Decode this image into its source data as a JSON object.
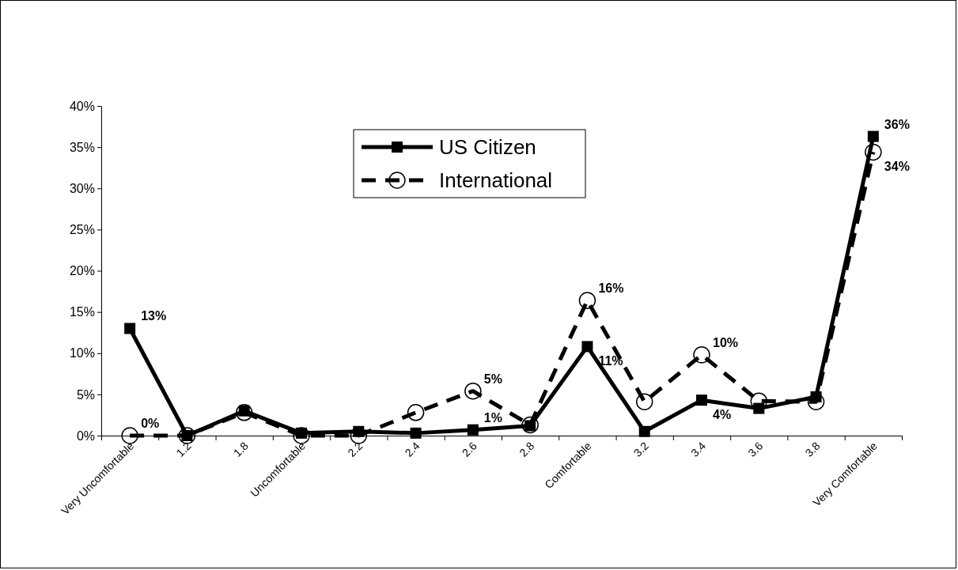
{
  "chart_data": {
    "type": "line",
    "categories": [
      "Very Uncomfortable",
      "1.2",
      "1.8",
      "Uncomfortable",
      "2.2",
      "2.4",
      "2.6",
      "2.8",
      "Comfortable",
      "3.2",
      "3.4",
      "3.6",
      "3.8",
      "Very Comfortable"
    ],
    "ylim": [
      0,
      40
    ],
    "yticks": [
      {
        "value": 0,
        "label": "0%"
      },
      {
        "value": 5,
        "label": "5%"
      },
      {
        "value": 10,
        "label": "10%"
      },
      {
        "value": 15,
        "label": "15%"
      },
      {
        "value": 20,
        "label": "20%"
      },
      {
        "value": 25,
        "label": "25%"
      },
      {
        "value": 30,
        "label": "30%"
      },
      {
        "value": 35,
        "label": "35%"
      },
      {
        "value": 40,
        "label": "40%"
      }
    ],
    "grid": false,
    "legend": "top",
    "series": [
      {
        "name": "US Citizen",
        "color": "#000000",
        "marker": "square",
        "line_style": "solid",
        "values": [
          13,
          0,
          3,
          0.3,
          0.5,
          0.3,
          0.7,
          1.2,
          10.8,
          0.5,
          4.3,
          3.3,
          4.7,
          36.3
        ],
        "value_labels": [
          "13%",
          null,
          null,
          null,
          null,
          null,
          "1%",
          null,
          "11%",
          null,
          "4%",
          null,
          null,
          "36%"
        ]
      },
      {
        "name": "International",
        "color": "#000000",
        "marker": "circle",
        "line_style": "dashed",
        "values": [
          0,
          0,
          2.8,
          0,
          0,
          2.8,
          5.4,
          1.3,
          16.4,
          4.1,
          9.8,
          4.2,
          4.1,
          34.4
        ],
        "value_labels": [
          "0%",
          null,
          null,
          null,
          null,
          null,
          "5%",
          null,
          "16%",
          null,
          "10%",
          null,
          null,
          "34%"
        ]
      }
    ]
  }
}
